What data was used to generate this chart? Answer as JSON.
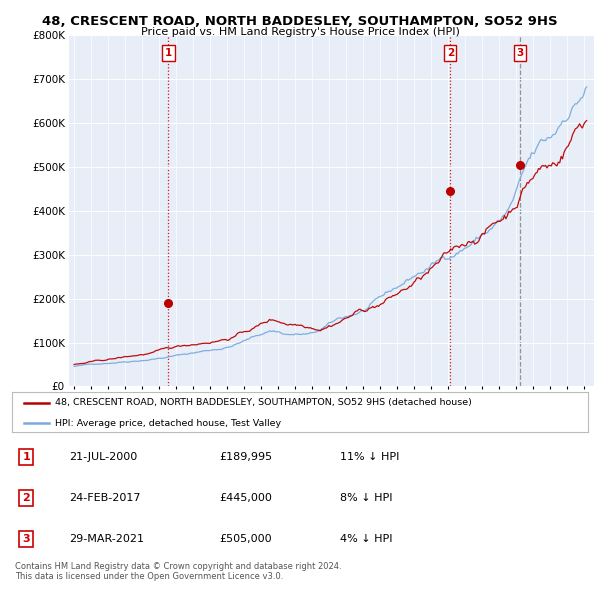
{
  "title": "48, CRESCENT ROAD, NORTH BADDESLEY, SOUTHAMPTON, SO52 9HS",
  "subtitle": "Price paid vs. HM Land Registry's House Price Index (HPI)",
  "sale_dates_num": [
    2000.55,
    2017.14,
    2021.24
  ],
  "sale_prices": [
    189995,
    445000,
    505000
  ],
  "sale_labels": [
    "1",
    "2",
    "3"
  ],
  "sale_date_strs": [
    "21-JUL-2000",
    "24-FEB-2017",
    "29-MAR-2021"
  ],
  "sale_price_strs": [
    "£189,995",
    "£445,000",
    "£505,000"
  ],
  "sale_hpi_strs": [
    "11% ↓ HPI",
    "8% ↓ HPI",
    "4% ↓ HPI"
  ],
  "line1_label": "48, CRESCENT ROAD, NORTH BADDESLEY, SOUTHAMPTON, SO52 9HS (detached house)",
  "line2_label": "HPI: Average price, detached house, Test Valley",
  "line1_color": "#bb0000",
  "line2_color": "#7aaadd",
  "ylim": [
    0,
    800000
  ],
  "yticks": [
    0,
    100000,
    200000,
    300000,
    400000,
    500000,
    600000,
    700000,
    800000
  ],
  "footer1": "Contains HM Land Registry data © Crown copyright and database right 2024.",
  "footer2": "This data is licensed under the Open Government Licence v3.0.",
  "background_color": "#ffffff",
  "plot_bg_color": "#e8eef8"
}
